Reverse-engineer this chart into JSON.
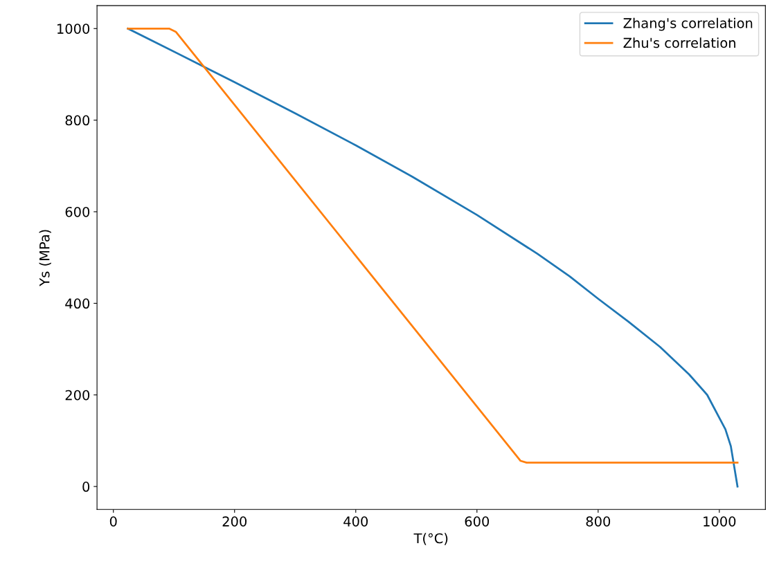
{
  "chart_data": {
    "type": "line",
    "xlabel": "T(°C)",
    "ylabel": "Ys (MPa)",
    "xlim": [
      -27,
      1076
    ],
    "ylim": [
      -50,
      1050
    ],
    "xticks": [
      0,
      200,
      400,
      600,
      800,
      1000
    ],
    "yticks": [
      0,
      200,
      400,
      600,
      800,
      1000
    ],
    "grid": false,
    "legend": "top right",
    "series": [
      {
        "name": "Zhang's correlation",
        "color": "#1f77b4",
        "x": [
          24,
          158,
          200,
          300,
          400,
          494,
          600,
          700,
          753,
          800,
          850,
          902,
          950,
          980,
          1000,
          1010,
          1019,
          1030
        ],
        "values": [
          1000,
          911,
          883,
          815,
          745,
          676,
          593,
          508,
          459,
          410,
          360,
          305,
          245,
          200,
          150,
          125,
          88,
          0
        ]
      },
      {
        "name": "Zhu's correlation",
        "color": "#ff7f0e",
        "x": [
          24,
          92,
          103,
          672,
          682,
          1030
        ],
        "values": [
          1000,
          1000,
          993,
          56,
          52,
          52
        ]
      }
    ]
  }
}
